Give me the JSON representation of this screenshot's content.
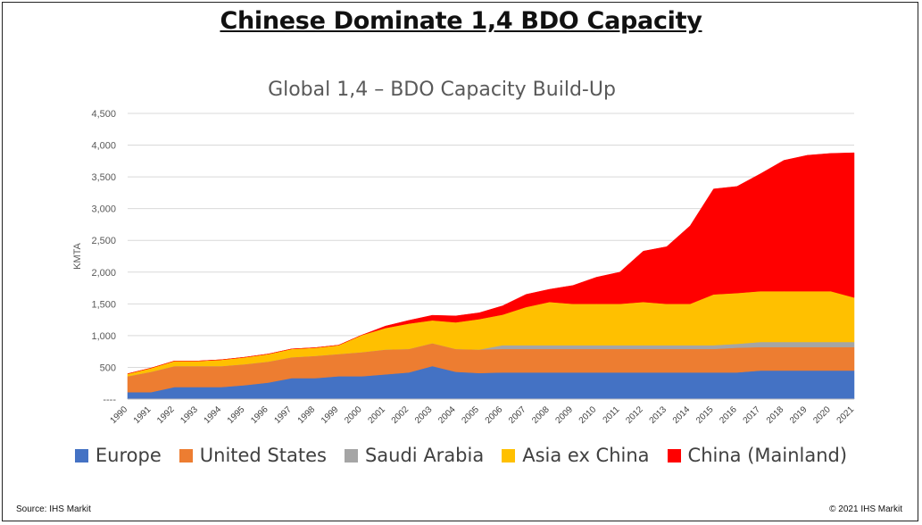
{
  "headline": "Chinese Dominate 1,4 BDO Capacity",
  "source": "Source: IHS Markit",
  "copyright": "© 2021 IHS Markit",
  "chart_data": {
    "type": "area",
    "stacked": true,
    "title": "Global 1,4 – BDO Capacity Build-Up",
    "xlabel": "",
    "ylabel": "KMTA",
    "ylim": [
      0,
      4500
    ],
    "yticks": [
      0,
      500,
      1000,
      1500,
      2000,
      2500,
      3000,
      3500,
      4000,
      4500
    ],
    "ytick_labels": [
      "----",
      "500",
      "1,000",
      "1,500",
      "2,000",
      "2,500",
      "3,000",
      "3,500",
      "4,000",
      "4,500"
    ],
    "grid": true,
    "legend_position": "bottom",
    "x": [
      "1990",
      "1991",
      "1992",
      "1993",
      "1994",
      "1995",
      "1996",
      "1997",
      "1998",
      "1999",
      "2000",
      "2001",
      "2002",
      "2003",
      "2004",
      "2005",
      "2006",
      "2007",
      "2008",
      "2009",
      "2010",
      "2011",
      "2012",
      "2013",
      "2014",
      "2015",
      "2016",
      "2017",
      "2018",
      "2019",
      "2020",
      "2021"
    ],
    "series": [
      {
        "name": "Europe",
        "color": "#4472C4",
        "values": [
          110,
          110,
          190,
          190,
          190,
          220,
          260,
          330,
          330,
          360,
          360,
          390,
          420,
          520,
          430,
          410,
          420,
          420,
          420,
          420,
          420,
          420,
          420,
          420,
          420,
          420,
          420,
          450,
          450,
          450,
          450,
          450
        ]
      },
      {
        "name": "United States",
        "color": "#ED7D31",
        "values": [
          250,
          320,
          330,
          330,
          330,
          330,
          330,
          330,
          350,
          350,
          380,
          390,
          370,
          360,
          360,
          370,
          370,
          370,
          370,
          370,
          370,
          370,
          370,
          370,
          370,
          370,
          390,
          370,
          370,
          370,
          370,
          370
        ]
      },
      {
        "name": "Saudi Arabia",
        "color": "#A5A5A5",
        "values": [
          0,
          0,
          0,
          0,
          0,
          0,
          0,
          0,
          0,
          0,
          0,
          0,
          0,
          0,
          0,
          0,
          60,
          60,
          60,
          60,
          60,
          60,
          60,
          60,
          60,
          60,
          60,
          80,
          80,
          80,
          80,
          80
        ]
      },
      {
        "name": "Asia ex China",
        "color": "#FFC000",
        "values": [
          40,
          60,
          80,
          80,
          100,
          110,
          120,
          130,
          130,
          140,
          270,
          340,
          400,
          360,
          420,
          480,
          480,
          600,
          680,
          650,
          650,
          650,
          680,
          650,
          650,
          800,
          800,
          800,
          800,
          800,
          800,
          700
        ]
      },
      {
        "name": "China (Mainland)",
        "color": "#FF0000",
        "values": [
          0,
          0,
          0,
          0,
          0,
          0,
          0,
          0,
          0,
          0,
          0,
          30,
          50,
          80,
          100,
          100,
          140,
          200,
          200,
          290,
          420,
          500,
          800,
          900,
          1230,
          1660,
          1680,
          1850,
          2060,
          2140,
          2170,
          2280
        ]
      }
    ]
  }
}
